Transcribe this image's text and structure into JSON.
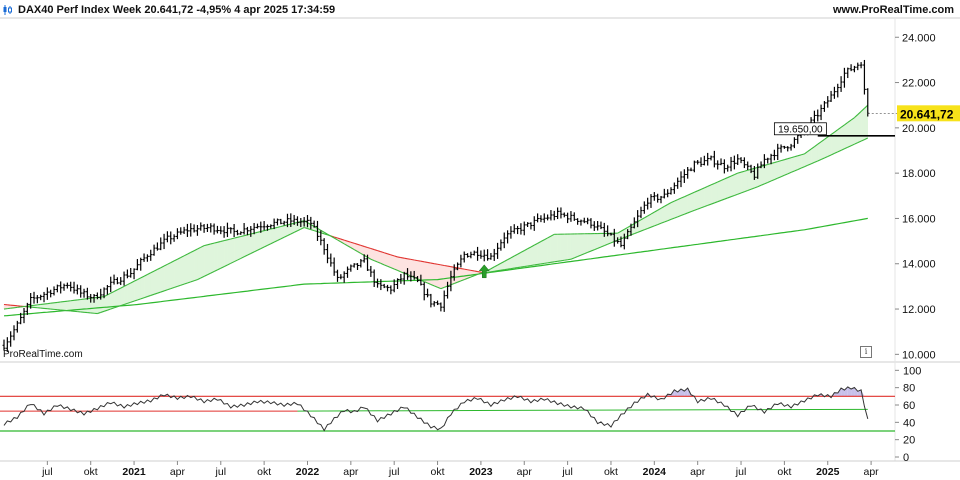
{
  "header": {
    "title": "DAX40 Perf Index Week 20.641,72 -4,95% 4 apr 2025 17:34:59",
    "site": "www.ProRealTime.com",
    "icon": "candlestick-icon"
  },
  "watermark": "ProRealTime.com",
  "info_icon": "i",
  "colors": {
    "price_bars": "#000000",
    "ma_red": "#e0322e",
    "ma_fill_red": "#fde3e1",
    "ma_green": "#3cb83c",
    "ma_fill_green": "#dff5dc",
    "long_green": "#2db82d",
    "last_price_bg": "#f7e21a",
    "rsi_line": "#333333",
    "rsi_upper": "#e0322e",
    "rsi_lower": "#2db82d",
    "rsi_mid": "#2db82d",
    "rsi_overbought_fill": "#c7c0ea",
    "arrow_up": "#2a9d2a"
  },
  "chart_data": [
    {
      "type": "ohlc",
      "title": "DAX40 Perf Index Week",
      "y_axis_ticks": [
        "10.000",
        "12.000",
        "14.000",
        "16.000",
        "18.000",
        "20.000",
        "22.000",
        "24.000"
      ],
      "y_tick_values": [
        10000,
        12000,
        14000,
        16000,
        18000,
        20000,
        22000,
        24000
      ],
      "ylim": [
        9750,
        24850
      ],
      "last_price": {
        "value": 20641.72,
        "label": "20.641,72"
      },
      "level_marker": {
        "value": 19650,
        "label": "19.650,00"
      },
      "x_ticks": [
        {
          "label": "jul",
          "bold": false
        },
        {
          "label": "okt",
          "bold": false
        },
        {
          "label": "2021",
          "bold": true
        },
        {
          "label": "apr",
          "bold": false
        },
        {
          "label": "jul",
          "bold": false
        },
        {
          "label": "okt",
          "bold": false
        },
        {
          "label": "2022",
          "bold": true
        },
        {
          "label": "apr",
          "bold": false
        },
        {
          "label": "jul",
          "bold": false
        },
        {
          "label": "okt",
          "bold": false
        },
        {
          "label": "2023",
          "bold": true
        },
        {
          "label": "apr",
          "bold": false
        },
        {
          "label": "jul",
          "bold": false
        },
        {
          "label": "okt",
          "bold": false
        },
        {
          "label": "2024",
          "bold": true
        },
        {
          "label": "apr",
          "bold": false
        },
        {
          "label": "jul",
          "bold": false
        },
        {
          "label": "okt",
          "bold": false
        },
        {
          "label": "2025",
          "bold": true
        },
        {
          "label": "apr",
          "bold": false
        }
      ],
      "x_tick_index": [
        13,
        26,
        39,
        52,
        65,
        78,
        91,
        104,
        117,
        130,
        143,
        156,
        169,
        182,
        195,
        208,
        221,
        234,
        247,
        260
      ],
      "close_anchors": [
        [
          0,
          10400
        ],
        [
          4,
          11300
        ],
        [
          8,
          12400
        ],
        [
          14,
          12800
        ],
        [
          19,
          13100
        ],
        [
          23,
          12700
        ],
        [
          27,
          12500
        ],
        [
          33,
          13200
        ],
        [
          38,
          13600
        ],
        [
          43,
          14400
        ],
        [
          49,
          15100
        ],
        [
          55,
          15500
        ],
        [
          62,
          15600
        ],
        [
          69,
          15400
        ],
        [
          77,
          15700
        ],
        [
          86,
          15900
        ],
        [
          92,
          15800
        ],
        [
          96,
          14700
        ],
        [
          100,
          13300
        ],
        [
          104,
          13800
        ],
        [
          108,
          14100
        ],
        [
          112,
          13000
        ],
        [
          116,
          12900
        ],
        [
          120,
          13500
        ],
        [
          124,
          13200
        ],
        [
          128,
          12300
        ],
        [
          131,
          12200
        ],
        [
          134,
          13400
        ],
        [
          138,
          14400
        ],
        [
          142,
          14500
        ],
        [
          146,
          14300
        ],
        [
          150,
          15200
        ],
        [
          154,
          15500
        ],
        [
          160,
          15900
        ],
        [
          166,
          16200
        ],
        [
          171,
          16000
        ],
        [
          176,
          15800
        ],
        [
          181,
          15300
        ],
        [
          185,
          14800
        ],
        [
          189,
          15800
        ],
        [
          193,
          16800
        ],
        [
          198,
          17000
        ],
        [
          203,
          17800
        ],
        [
          207,
          18400
        ],
        [
          212,
          18600
        ],
        [
          216,
          18300
        ],
        [
          220,
          18600
        ],
        [
          225,
          17900
        ],
        [
          228,
          18600
        ],
        [
          232,
          19000
        ],
        [
          236,
          19300
        ],
        [
          240,
          19900
        ],
        [
          244,
          20600
        ],
        [
          248,
          21400
        ],
        [
          252,
          22400
        ],
        [
          255,
          22700
        ],
        [
          257,
          22900
        ],
        [
          258,
          21700
        ],
        [
          259,
          20641.72
        ]
      ],
      "moving_average_short_anchors": [
        [
          0,
          12000
        ],
        [
          30,
          12550
        ],
        [
          60,
          14800
        ],
        [
          90,
          15900
        ],
        [
          110,
          14200
        ],
        [
          131,
          12900
        ],
        [
          145,
          13700
        ],
        [
          165,
          15300
        ],
        [
          184,
          15350
        ],
        [
          200,
          16700
        ],
        [
          220,
          18000
        ],
        [
          240,
          18850
        ],
        [
          255,
          20450
        ],
        [
          259,
          21000
        ]
      ],
      "moving_average_long_anchors": [
        [
          0,
          12200
        ],
        [
          28,
          11800
        ],
        [
          58,
          13300
        ],
        [
          90,
          15600
        ],
        [
          118,
          14300
        ],
        [
          144,
          13600
        ],
        [
          170,
          14200
        ],
        [
          185,
          15100
        ],
        [
          206,
          16300
        ],
        [
          226,
          17400
        ],
        [
          245,
          18600
        ],
        [
          259,
          19550
        ]
      ],
      "moving_average_slow_anchors": [
        [
          0,
          11700
        ],
        [
          40,
          12200
        ],
        [
          90,
          13100
        ],
        [
          130,
          13300
        ],
        [
          170,
          14100
        ],
        [
          210,
          14900
        ],
        [
          240,
          15500
        ],
        [
          259,
          16000
        ]
      ],
      "buy_arrow_index": 144
    },
    {
      "type": "line",
      "title": "RSI",
      "y_axis_ticks": [
        "0",
        "20",
        "40",
        "60",
        "80",
        "100"
      ],
      "y_tick_values": [
        0,
        20,
        40,
        60,
        80,
        100
      ],
      "ylim": [
        0,
        105
      ],
      "upper_level": 70,
      "lower_level": 30,
      "mid_level": 55,
      "rsi_anchors": [
        [
          0,
          38
        ],
        [
          4,
          46
        ],
        [
          8,
          62
        ],
        [
          12,
          50
        ],
        [
          16,
          60
        ],
        [
          20,
          55
        ],
        [
          24,
          50
        ],
        [
          28,
          56
        ],
        [
          32,
          63
        ],
        [
          36,
          58
        ],
        [
          40,
          62
        ],
        [
          44,
          65
        ],
        [
          48,
          72
        ],
        [
          52,
          68
        ],
        [
          56,
          70
        ],
        [
          60,
          64
        ],
        [
          64,
          67
        ],
        [
          68,
          58
        ],
        [
          72,
          60
        ],
        [
          76,
          64
        ],
        [
          80,
          63
        ],
        [
          84,
          60
        ],
        [
          88,
          62
        ],
        [
          92,
          48
        ],
        [
          96,
          32
        ],
        [
          99,
          44
        ],
        [
          102,
          54
        ],
        [
          105,
          52
        ],
        [
          108,
          58
        ],
        [
          112,
          42
        ],
        [
          116,
          50
        ],
        [
          120,
          58
        ],
        [
          124,
          46
        ],
        [
          128,
          35
        ],
        [
          131,
          32
        ],
        [
          134,
          50
        ],
        [
          138,
          64
        ],
        [
          142,
          68
        ],
        [
          146,
          60
        ],
        [
          150,
          66
        ],
        [
          154,
          70
        ],
        [
          158,
          64
        ],
        [
          162,
          67
        ],
        [
          166,
          62
        ],
        [
          170,
          58
        ],
        [
          174,
          56
        ],
        [
          178,
          40
        ],
        [
          182,
          36
        ],
        [
          185,
          48
        ],
        [
          189,
          62
        ],
        [
          193,
          72
        ],
        [
          197,
          66
        ],
        [
          201,
          76
        ],
        [
          205,
          78
        ],
        [
          208,
          64
        ],
        [
          212,
          68
        ],
        [
          216,
          60
        ],
        [
          220,
          48
        ],
        [
          224,
          60
        ],
        [
          228,
          52
        ],
        [
          232,
          62
        ],
        [
          236,
          58
        ],
        [
          240,
          65
        ],
        [
          244,
          72
        ],
        [
          248,
          70
        ],
        [
          251,
          78
        ],
        [
          254,
          80
        ],
        [
          257,
          76
        ],
        [
          259,
          44
        ]
      ]
    }
  ]
}
